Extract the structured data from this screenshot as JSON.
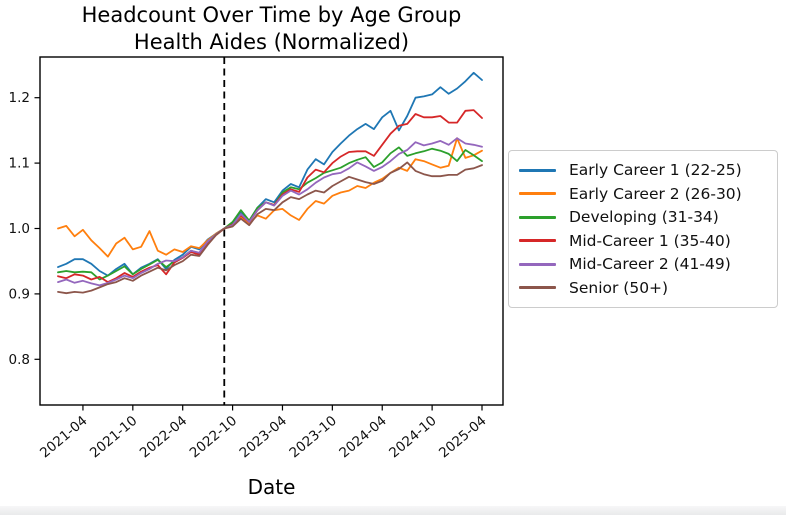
{
  "figure": {
    "title_line1": "Headcount Over Time by Age Group",
    "title_line2": "Health Aides (Normalized)"
  },
  "chart_data": {
    "type": "line",
    "title": "Headcount Over Time by Age Group",
    "subtitle": "Health Aides (Normalized)",
    "xlabel": "Date",
    "ylabel": "",
    "grid": false,
    "legend_position": "right-outside",
    "ylim": [
      0.73,
      1.26
    ],
    "ytick_values": [
      0.8,
      0.9,
      1.0,
      1.1,
      1.2
    ],
    "ytick_labels": [
      "0.8",
      "0.9",
      "1.0",
      "1.1",
      "1.2"
    ],
    "xtick_labels": [
      "2021-04",
      "2021-10",
      "2022-04",
      "2022-10",
      "2023-04",
      "2023-10",
      "2024-04",
      "2024-10",
      "2025-04"
    ],
    "xtick_indices": [
      3,
      9,
      15,
      21,
      27,
      33,
      39,
      45,
      51
    ],
    "x": [
      "2021-01",
      "2021-02",
      "2021-03",
      "2021-04",
      "2021-05",
      "2021-06",
      "2021-07",
      "2021-08",
      "2021-09",
      "2021-10",
      "2021-11",
      "2021-12",
      "2022-01",
      "2022-02",
      "2022-03",
      "2022-04",
      "2022-05",
      "2022-06",
      "2022-07",
      "2022-08",
      "2022-09",
      "2022-10",
      "2022-11",
      "2022-12",
      "2023-01",
      "2023-02",
      "2023-03",
      "2023-04",
      "2023-05",
      "2023-06",
      "2023-07",
      "2023-08",
      "2023-09",
      "2023-10",
      "2023-11",
      "2023-12",
      "2024-01",
      "2024-02",
      "2024-03",
      "2024-04",
      "2024-05",
      "2024-06",
      "2024-07",
      "2024-08",
      "2024-09",
      "2024-10",
      "2024-11",
      "2024-12",
      "2025-01",
      "2025-02",
      "2025-03",
      "2025-04"
    ],
    "annotations": {
      "vline": {
        "x": "2022-09",
        "index": 20,
        "style": "dashed",
        "color": "#000000"
      }
    },
    "series": [
      {
        "name": "Early Career 1 (22-25)",
        "color": "#1f77b4",
        "values": [
          0.941,
          0.946,
          0.953,
          0.953,
          0.946,
          0.935,
          0.928,
          0.938,
          0.946,
          0.93,
          0.94,
          0.946,
          0.953,
          0.938,
          0.952,
          0.96,
          0.972,
          0.968,
          0.983,
          0.992,
          1.0,
          1.008,
          1.024,
          1.012,
          1.032,
          1.045,
          1.04,
          1.058,
          1.068,
          1.063,
          1.09,
          1.106,
          1.098,
          1.117,
          1.13,
          1.142,
          1.152,
          1.16,
          1.152,
          1.17,
          1.18,
          1.15,
          1.172,
          1.2,
          1.202,
          1.205,
          1.216,
          1.206,
          1.214,
          1.225,
          1.238,
          1.227
        ]
      },
      {
        "name": "Early Career 2 (26-30)",
        "color": "#ff7f0e",
        "values": [
          1.0,
          1.004,
          0.988,
          0.998,
          0.982,
          0.97,
          0.957,
          0.977,
          0.986,
          0.968,
          0.972,
          0.996,
          0.966,
          0.96,
          0.968,
          0.964,
          0.973,
          0.97,
          0.982,
          0.992,
          1.0,
          1.005,
          1.018,
          1.008,
          1.02,
          1.015,
          1.028,
          1.03,
          1.02,
          1.013,
          1.03,
          1.042,
          1.038,
          1.05,
          1.055,
          1.058,
          1.065,
          1.062,
          1.07,
          1.076,
          1.085,
          1.093,
          1.088,
          1.106,
          1.103,
          1.098,
          1.093,
          1.096,
          1.138,
          1.108,
          1.112,
          1.119
        ]
      },
      {
        "name": "Developing (31-34)",
        "color": "#2ca02c",
        "values": [
          0.933,
          0.935,
          0.933,
          0.934,
          0.933,
          0.922,
          0.928,
          0.935,
          0.942,
          0.93,
          0.938,
          0.945,
          0.952,
          0.941,
          0.95,
          0.956,
          0.966,
          0.962,
          0.98,
          0.991,
          1.0,
          1.01,
          1.028,
          1.012,
          1.032,
          1.04,
          1.036,
          1.055,
          1.063,
          1.06,
          1.07,
          1.077,
          1.085,
          1.089,
          1.093,
          1.1,
          1.105,
          1.109,
          1.094,
          1.101,
          1.115,
          1.124,
          1.111,
          1.115,
          1.118,
          1.122,
          1.119,
          1.114,
          1.103,
          1.12,
          1.112,
          1.103
        ]
      },
      {
        "name": "Mid-Career 1 (35-40)",
        "color": "#d62728",
        "values": [
          0.927,
          0.924,
          0.93,
          0.928,
          0.922,
          0.926,
          0.918,
          0.924,
          0.932,
          0.926,
          0.934,
          0.94,
          0.944,
          0.93,
          0.948,
          0.955,
          0.964,
          0.96,
          0.976,
          0.99,
          1.0,
          1.006,
          1.02,
          1.01,
          1.028,
          1.04,
          1.036,
          1.052,
          1.06,
          1.056,
          1.078,
          1.09,
          1.086,
          1.1,
          1.11,
          1.117,
          1.118,
          1.118,
          1.111,
          1.128,
          1.145,
          1.157,
          1.16,
          1.175,
          1.17,
          1.17,
          1.172,
          1.162,
          1.162,
          1.18,
          1.181,
          1.169
        ]
      },
      {
        "name": "Mid-Career 2 (41-49)",
        "color": "#9467bd",
        "values": [
          0.918,
          0.922,
          0.917,
          0.92,
          0.916,
          0.913,
          0.917,
          0.922,
          0.928,
          0.924,
          0.932,
          0.938,
          0.946,
          0.951,
          0.95,
          0.956,
          0.966,
          0.963,
          0.98,
          0.991,
          1.0,
          1.005,
          1.022,
          1.01,
          1.028,
          1.04,
          1.035,
          1.05,
          1.058,
          1.052,
          1.06,
          1.07,
          1.078,
          1.083,
          1.085,
          1.092,
          1.101,
          1.095,
          1.088,
          1.094,
          1.103,
          1.114,
          1.12,
          1.132,
          1.127,
          1.13,
          1.134,
          1.128,
          1.138,
          1.13,
          1.128,
          1.125
        ]
      },
      {
        "name": "Senior (50+)",
        "color": "#8c564b",
        "values": [
          0.903,
          0.901,
          0.903,
          0.902,
          0.905,
          0.91,
          0.915,
          0.918,
          0.924,
          0.92,
          0.928,
          0.934,
          0.94,
          0.936,
          0.944,
          0.95,
          0.96,
          0.958,
          0.975,
          0.99,
          1.0,
          1.003,
          1.015,
          1.005,
          1.022,
          1.03,
          1.028,
          1.04,
          1.048,
          1.045,
          1.052,
          1.058,
          1.055,
          1.065,
          1.072,
          1.079,
          1.075,
          1.071,
          1.068,
          1.073,
          1.085,
          1.091,
          1.101,
          1.088,
          1.083,
          1.08,
          1.08,
          1.082,
          1.082,
          1.09,
          1.092,
          1.097
        ]
      }
    ]
  },
  "colors": {
    "text": "#111111",
    "spine": "#000000",
    "legend_border": "#cccccc"
  }
}
